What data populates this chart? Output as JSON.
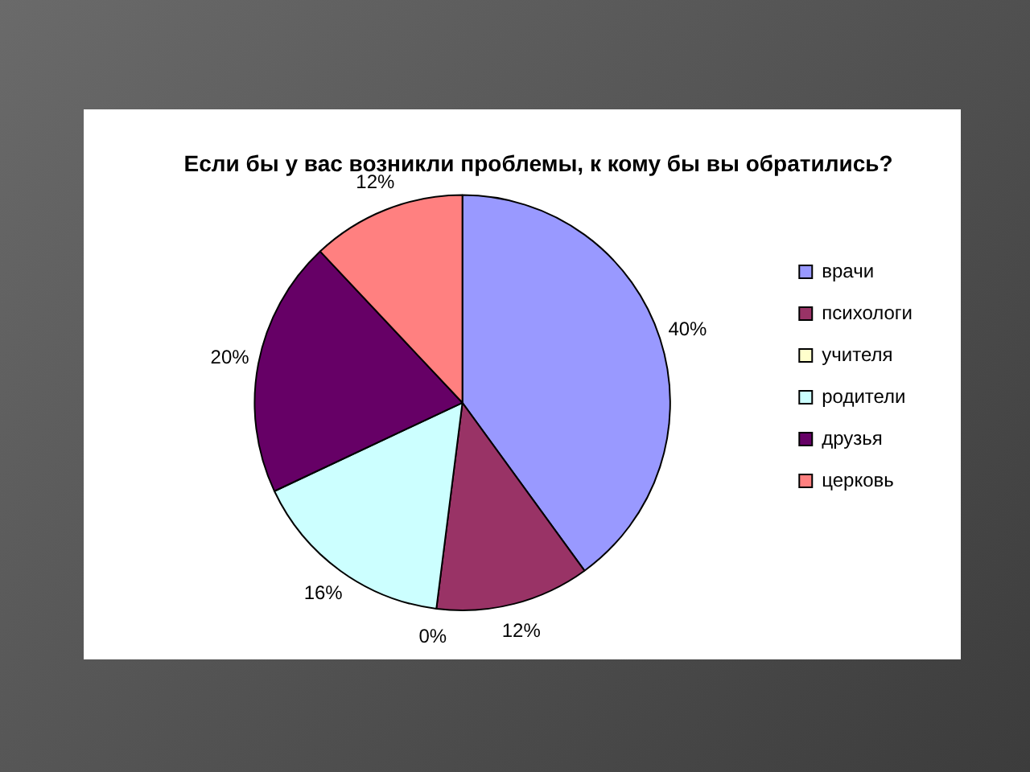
{
  "chart_data": {
    "type": "pie",
    "title": "Если бы у вас возникли проблемы, к кому бы вы обратились?",
    "categories": [
      "врачи",
      "психологи",
      "учителя",
      "родители",
      "друзья",
      "церковь"
    ],
    "values": [
      40,
      12,
      0,
      16,
      20,
      12
    ],
    "colors": [
      "#9999ff",
      "#993366",
      "#ffffcc",
      "#ccffff",
      "#660066",
      "#ff8080"
    ],
    "value_labels": [
      "40%",
      "12%",
      "0%",
      "16%",
      "20%",
      "12%"
    ],
    "legend": "right"
  }
}
